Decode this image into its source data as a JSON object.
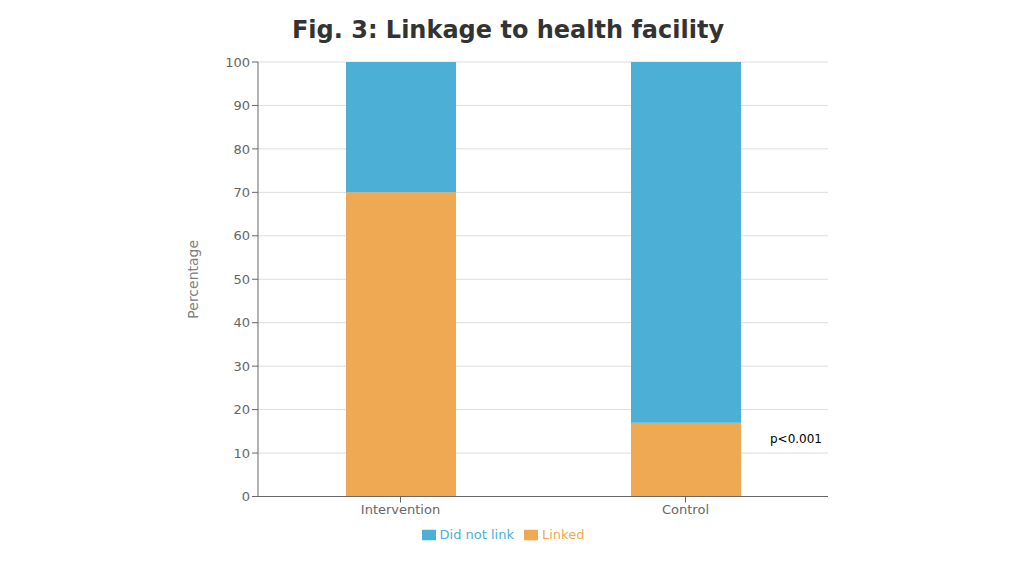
{
  "chart_data": {
    "type": "bar",
    "stacked": true,
    "title": "Fig. 3: Linkage to health facility",
    "y_label": "Percentage",
    "categories": [
      "Intervention",
      "Control"
    ],
    "series": [
      {
        "name": "Linked",
        "color": "#F0A953",
        "values": [
          70,
          17
        ]
      },
      {
        "name": "Did not link",
        "color": "#4BAFD6",
        "values": [
          30,
          83
        ]
      }
    ],
    "ylim": [
      0,
      100
    ],
    "yticks": [
      0,
      10,
      20,
      30,
      40,
      50,
      60,
      70,
      80,
      90,
      100
    ],
    "grid": true,
    "annotation": "p<0.001"
  }
}
